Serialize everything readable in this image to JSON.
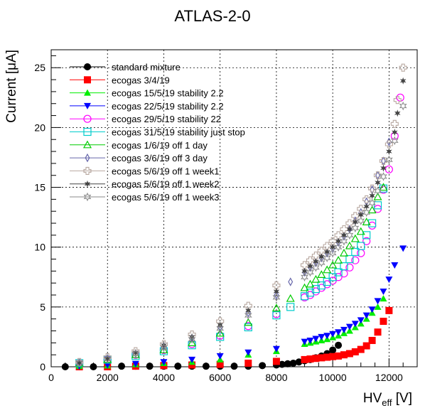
{
  "chart_data": {
    "type": "scatter",
    "title": "ATLAS-2-0",
    "xlabel": "HV",
    "xlabel_sub": "eff",
    "xlabel_unit": " [V]",
    "ylabel": "Current [μA]",
    "xlim": [
      0,
      13000
    ],
    "ylim": [
      0,
      26.5
    ],
    "x_ticks": [
      0,
      2000,
      4000,
      6000,
      8000,
      10000,
      12000
    ],
    "y_ticks": [
      0,
      5,
      10,
      15,
      20,
      25
    ],
    "grid": true,
    "legend_position": "top-left",
    "series": [
      {
        "name": "standard mixture",
        "color": "#000000",
        "marker": "circle-filled",
        "x": [
          500,
          1000,
          1500,
          2000,
          2500,
          3000,
          3500,
          4000,
          4500,
          5000,
          5500,
          6000,
          6500,
          7000,
          7500,
          8000,
          8200,
          8400,
          8600,
          8800,
          9000,
          9200,
          9400,
          9600,
          9800,
          10000,
          10200
        ],
        "y": [
          0,
          0,
          0,
          0.05,
          0.05,
          0.05,
          0.05,
          0.05,
          0.05,
          0.05,
          0.05,
          0.05,
          0.05,
          0.05,
          0.1,
          0.15,
          0.2,
          0.25,
          0.3,
          0.4,
          0.5,
          0.6,
          0.75,
          0.9,
          1.1,
          1.4,
          1.8
        ]
      },
      {
        "name": "ecogas 3/4/19",
        "color": "#ff0000",
        "marker": "square-filled",
        "x": [
          1000,
          2000,
          3000,
          4000,
          5000,
          6000,
          7000,
          8000,
          9000,
          9200,
          9400,
          9600,
          9800,
          10000,
          10200,
          10400,
          10600,
          10800,
          11000,
          11200,
          11400,
          11600,
          11800,
          12000
        ],
        "y": [
          0,
          0,
          0.05,
          0.1,
          0.15,
          0.2,
          0.3,
          0.45,
          0.6,
          0.65,
          0.7,
          0.75,
          0.8,
          0.85,
          0.9,
          1.0,
          1.1,
          1.25,
          1.45,
          1.75,
          2.2,
          2.9,
          3.8,
          4.7
        ]
      },
      {
        "name": "ecogas 15/5/19 stability 2.2",
        "color": "#00ee00",
        "marker": "triangle-up-filled",
        "x": [
          1000,
          2000,
          3000,
          4000,
          5000,
          6000,
          7000,
          8000,
          9000,
          9200,
          9400,
          9600,
          9800,
          10000,
          10200,
          10400,
          10600,
          10800,
          11000,
          11200,
          11400,
          11600,
          11800
        ],
        "y": [
          0.05,
          0.1,
          0.2,
          0.3,
          0.4,
          0.6,
          1.0,
          1.3,
          1.9,
          2.0,
          2.1,
          2.2,
          2.3,
          2.45,
          2.6,
          2.8,
          3.0,
          3.3,
          3.6,
          4.0,
          4.5,
          5.0,
          5.7
        ]
      },
      {
        "name": "ecogas 22/5/19 stability 2.2",
        "color": "#0000ff",
        "marker": "triangle-down-filled",
        "x": [
          1000,
          2000,
          3000,
          4000,
          5000,
          6000,
          7000,
          8000,
          9000,
          9200,
          9400,
          9600,
          9800,
          10000,
          10200,
          10400,
          10600,
          10800,
          11000,
          11200,
          11400,
          11600,
          11800,
          12000,
          12200,
          12500
        ],
        "y": [
          0.05,
          0.15,
          0.25,
          0.4,
          0.6,
          0.9,
          1.2,
          1.5,
          2.1,
          2.2,
          2.35,
          2.5,
          2.6,
          2.75,
          2.9,
          3.1,
          3.35,
          3.6,
          3.9,
          4.3,
          4.8,
          5.5,
          6.3,
          7.3,
          8.5,
          9.9
        ]
      },
      {
        "name": "ecogas 29/5/19 stability 22",
        "color": "#ff00ff",
        "marker": "circle-open",
        "x": [
          1000,
          2000,
          3000,
          4000,
          5000,
          6000,
          7000,
          8000,
          9000,
          9200,
          9400,
          9600,
          9800,
          10000,
          10200,
          10400,
          10600,
          10800,
          11000,
          11200,
          11400,
          11600,
          11800,
          12000,
          12200,
          12400
        ],
        "y": [
          0.3,
          0.6,
          1.0,
          1.4,
          1.9,
          2.6,
          3.4,
          4.4,
          5.8,
          6.0,
          6.3,
          6.6,
          6.9,
          7.2,
          7.5,
          7.8,
          8.3,
          8.9,
          9.5,
          10.5,
          11.8,
          13.2,
          14.8,
          16.5,
          19.3,
          22.5
        ]
      },
      {
        "name": "ecogas 31/5/19 stability just stop",
        "color": "#00cccc",
        "marker": "square-open",
        "x": [
          1000,
          2000,
          3000,
          4000,
          5000,
          6000,
          7000,
          8000,
          8500,
          9000,
          9200,
          9400,
          9600,
          9800,
          10000,
          10200,
          10400,
          10600,
          10800,
          11000,
          11200,
          11400,
          11600,
          11800
        ],
        "y": [
          0.3,
          0.6,
          0.9,
          1.3,
          1.8,
          2.5,
          3.3,
          4.3,
          5.0,
          5.9,
          6.2,
          6.5,
          6.8,
          7.1,
          7.5,
          7.9,
          8.4,
          9.0,
          9.6,
          10.1,
          11.0,
          12.0,
          13.5,
          14.9
        ]
      },
      {
        "name": "ecogas 1/6/19 off 1 day",
        "color": "#00cc00",
        "marker": "triangle-up-open",
        "x": [
          1000,
          2000,
          3000,
          4000,
          5000,
          6000,
          7000,
          8000,
          8500,
          9000,
          9200,
          9400,
          9600,
          9800,
          10000,
          10200,
          10400,
          10600,
          10800,
          11000,
          11200,
          11400,
          11600,
          11800
        ],
        "y": [
          0.3,
          0.6,
          1.0,
          1.4,
          2.0,
          2.8,
          3.7,
          4.9,
          5.7,
          6.6,
          6.9,
          7.3,
          7.7,
          8.1,
          8.5,
          8.9,
          9.5,
          10.1,
          10.7,
          11.3,
          12.1,
          13.1,
          14.2,
          15.0
        ]
      },
      {
        "name": "ecogas 3/6/19 off 3 day",
        "color": "#6666aa",
        "marker": "diamond-open",
        "x": [
          1000,
          2000,
          3000,
          4000,
          5000,
          6000,
          7000,
          8000,
          8500,
          9000,
          9200,
          9400,
          9600,
          9800,
          10000,
          10200,
          10400,
          10600,
          10800,
          11000,
          11200,
          11400,
          11600,
          11800,
          12000
        ],
        "y": [
          0.35,
          0.7,
          1.1,
          1.7,
          2.4,
          3.3,
          4.5,
          6.0,
          7.1,
          7.9,
          8.3,
          8.7,
          9.1,
          9.5,
          9.9,
          10.4,
          10.9,
          11.5,
          12.2,
          12.9,
          13.8,
          14.8,
          16.0,
          17.2,
          18.8
        ]
      },
      {
        "name": "ecogas 5/6/19 off 1 week1",
        "color": "#b8a8a0",
        "marker": "cross-open",
        "x": [
          1000,
          2000,
          3000,
          4000,
          5000,
          6000,
          7000,
          8000,
          9000,
          9200,
          9400,
          9600,
          9800,
          10000,
          10200,
          10400,
          10600,
          10800,
          11000,
          11200,
          11400,
          11600,
          11800,
          12000,
          12200,
          12300,
          12500
        ],
        "y": [
          0.4,
          0.8,
          1.3,
          1.9,
          2.7,
          3.8,
          5.1,
          6.8,
          8.5,
          8.9,
          9.3,
          9.7,
          10.1,
          10.5,
          11.0,
          11.5,
          12.0,
          12.6,
          13.2,
          14.0,
          14.9,
          16.0,
          17.2,
          18.6,
          20.3,
          22.3,
          25.0
        ]
      },
      {
        "name": "ecogas 5/6/19 off 1 week2",
        "color": "#444444",
        "marker": "star-filled",
        "x": [
          1000,
          2000,
          3000,
          4000,
          5000,
          6000,
          7000,
          8000,
          9000,
          9200,
          9400,
          9600,
          9800,
          10000,
          10200,
          10400,
          10600,
          10800,
          11000,
          11200,
          11400,
          11600,
          11800,
          12000,
          12200,
          12300,
          12500
        ],
        "y": [
          0.35,
          0.7,
          1.2,
          1.8,
          2.5,
          3.5,
          4.7,
          6.3,
          8.0,
          8.4,
          8.8,
          9.2,
          9.6,
          10.0,
          10.5,
          11.0,
          11.5,
          12.1,
          12.7,
          13.4,
          14.3,
          15.4,
          16.6,
          18.0,
          19.6,
          21.2,
          23.9
        ]
      },
      {
        "name": "ecogas 5/6/19 off 1 week3",
        "color": "#888888",
        "marker": "star-open",
        "x": [
          1000,
          2000,
          3000,
          4000,
          5000,
          6000,
          7000,
          8000,
          9000,
          9200,
          9400,
          9600,
          9800,
          10000,
          10200,
          10400,
          10600,
          10800,
          11000,
          11200,
          11400,
          11600,
          11800,
          12000,
          12200,
          12500
        ],
        "y": [
          0.3,
          0.65,
          1.1,
          1.6,
          2.3,
          3.2,
          4.3,
          5.8,
          7.5,
          7.9,
          8.3,
          8.7,
          9.1,
          9.5,
          10.0,
          10.5,
          11.0,
          11.6,
          12.2,
          12.9,
          13.7,
          14.7,
          15.9,
          17.3,
          18.9,
          21.8
        ]
      }
    ]
  }
}
